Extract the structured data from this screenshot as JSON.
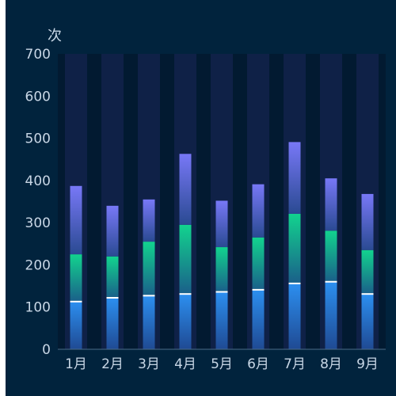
{
  "chart_data": {
    "type": "bar",
    "stacked": true,
    "unit_label": "次",
    "categories": [
      "1月",
      "2月",
      "3月",
      "4月",
      "5月",
      "6月",
      "7月",
      "8月",
      "9月"
    ],
    "y_ticks": [
      0,
      100,
      200,
      300,
      400,
      500,
      600,
      700
    ],
    "ylim": [
      0,
      700
    ],
    "series": [
      {
        "values": [
          113,
          122,
          127,
          131,
          136,
          141,
          156,
          160,
          131
        ]
      },
      {
        "values": [
          112,
          98,
          128,
          164,
          106,
          124,
          165,
          121,
          104
        ]
      },
      {
        "values": [
          162,
          120,
          100,
          168,
          110,
          126,
          170,
          124,
          133
        ]
      }
    ],
    "background_max": 700,
    "grid": false,
    "colors": {
      "panel_bg": "#01233d",
      "plot_bg": "#021a31",
      "background_bar": "#0f2147",
      "axis_line": "#4a6b88",
      "text": "#c8d6e5",
      "series_bottom": [
        "#2c8ff0",
        "#1f4a93"
      ],
      "series_middle": [
        "#12d38e",
        "#1a5f8a"
      ],
      "series_top": [
        "#7878f7",
        "#2a4a92"
      ],
      "divider": "#ffffff"
    }
  }
}
